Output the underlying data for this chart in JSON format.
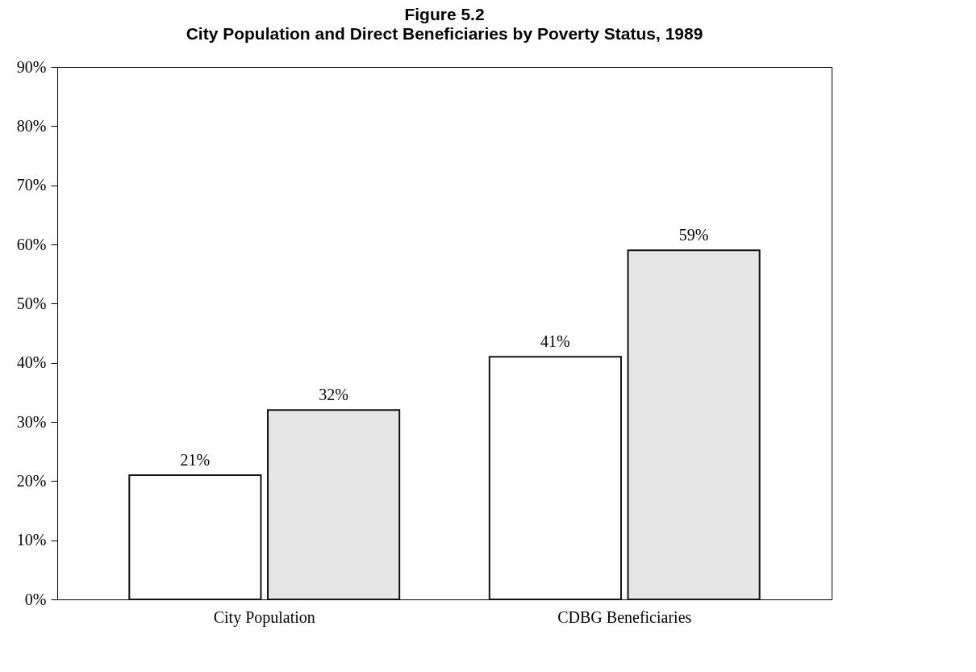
{
  "chart_data": {
    "type": "bar",
    "title": "Figure 5.2",
    "subtitle": "City Population and Direct Beneficiaries by Poverty Status, 1989",
    "categories": [
      "City Population",
      "CDBG Beneficiaries"
    ],
    "series": [
      {
        "color": "#ffffff",
        "values": [
          21,
          41
        ],
        "value_labels": [
          "21%",
          "41%"
        ]
      },
      {
        "color": "#e6e6e6",
        "values": [
          32,
          59
        ],
        "value_labels": [
          "32%",
          "59%"
        ]
      }
    ],
    "ylim": [
      0,
      90
    ],
    "yticks": [
      {
        "value": 0,
        "label": "0%"
      },
      {
        "value": 10,
        "label": "10%"
      },
      {
        "value": 20,
        "label": "20%"
      },
      {
        "value": 30,
        "label": "30%"
      },
      {
        "value": 40,
        "label": "40%"
      },
      {
        "value": 50,
        "label": "50%"
      },
      {
        "value": 60,
        "label": "60%"
      },
      {
        "value": 70,
        "label": "70%"
      },
      {
        "value": 80,
        "label": "80%"
      },
      {
        "value": 90,
        "label": "90%"
      }
    ],
    "grid": false
  }
}
